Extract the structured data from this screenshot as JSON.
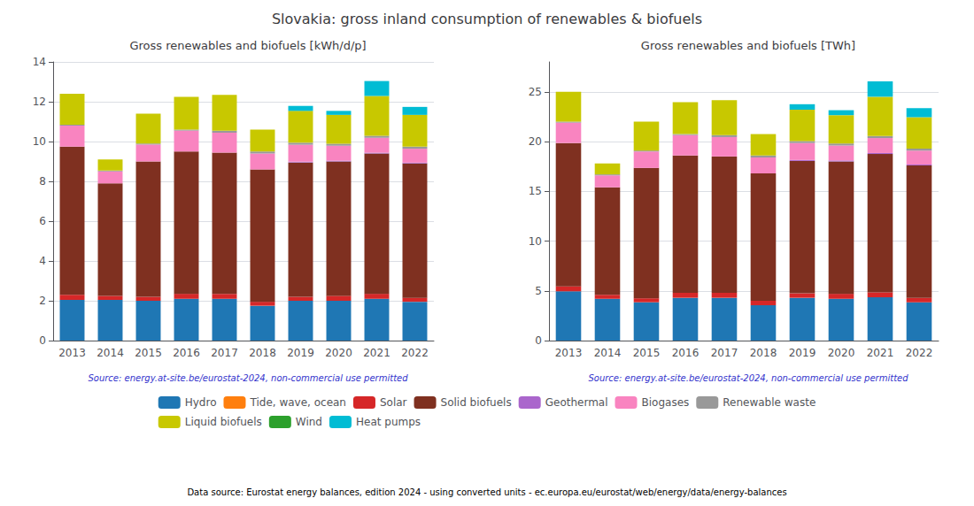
{
  "title": "Slovakia: gross inland consumption of renewables & biofuels",
  "annotations": [
    "Data source: Eurostat energy balances, edition 2024 - using converted units - ec.europa.eu/eurostat/web/energy/data/energy-balances"
  ],
  "chart_data": [
    {
      "type": "bar",
      "title": "Gross renewables and biofuels [kWh/d/p]",
      "annotations": [
        "Source: energy.at-site.be/eurostat-2024, non-commercial use permitted"
      ],
      "stacked": true,
      "grid": true,
      "legend": "bottom",
      "categories": [
        "2013",
        "2014",
        "2015",
        "2016",
        "2017",
        "2018",
        "2019",
        "2020",
        "2021",
        "2022"
      ],
      "series": [
        {
          "name": "Hydro",
          "color": "#1f77b4",
          "values": [
            2.05,
            2.05,
            2.0,
            2.1,
            2.1,
            1.75,
            2.0,
            2.0,
            2.1,
            1.95
          ]
        },
        {
          "name": "Tide, wave, ocean",
          "color": "#ff7f0e",
          "values": [
            0.0,
            0.0,
            0.0,
            0.0,
            0.0,
            0.0,
            0.0,
            0.0,
            0.0,
            0.0
          ]
        },
        {
          "name": "Solar",
          "color": "#d62728",
          "values": [
            0.25,
            0.2,
            0.2,
            0.25,
            0.25,
            0.2,
            0.2,
            0.25,
            0.25,
            0.2
          ]
        },
        {
          "name": "Solid biofuels",
          "color": "#7f3020",
          "values": [
            7.45,
            5.65,
            6.8,
            7.15,
            7.1,
            6.65,
            6.75,
            6.75,
            7.05,
            6.75
          ]
        },
        {
          "name": "Geothermal",
          "color": "#aa66cc",
          "values": [
            0.0,
            0.0,
            0.0,
            0.0,
            0.0,
            0.0,
            0.04,
            0.04,
            0.04,
            0.04
          ]
        },
        {
          "name": "Biogases",
          "color": "#f984c0",
          "values": [
            1.05,
            0.6,
            0.85,
            1.05,
            1.0,
            0.8,
            0.85,
            0.75,
            0.75,
            0.7
          ]
        },
        {
          "name": "Renewable waste",
          "color": "#999999",
          "values": [
            0.05,
            0.05,
            0.05,
            0.05,
            0.1,
            0.1,
            0.1,
            0.1,
            0.1,
            0.1
          ]
        },
        {
          "name": "Liquid biofuels",
          "color": "#c8c800",
          "values": [
            1.55,
            0.55,
            1.5,
            1.65,
            1.8,
            1.1,
            1.6,
            1.45,
            2.0,
            1.6
          ]
        },
        {
          "name": "Wind",
          "color": "#2ca02c",
          "values": [
            0.0,
            0.0,
            0.0,
            0.0,
            0.0,
            0.0,
            0.0,
            0.0,
            0.0,
            0.0
          ]
        },
        {
          "name": "Heat pumps",
          "color": "#00bcd4",
          "values": [
            0.0,
            0.0,
            0.0,
            0.0,
            0.0,
            0.0,
            0.25,
            0.2,
            0.75,
            0.4
          ]
        }
      ],
      "ylim": [
        0,
        14
      ],
      "yticks": [
        0,
        2,
        4,
        6,
        8,
        10,
        12,
        14
      ]
    },
    {
      "type": "bar",
      "title": "Gross renewables and biofuels [TWh]",
      "annotations": [
        "Source: energy.at-site.be/eurostat-2024, non-commercial use permitted"
      ],
      "stacked": true,
      "grid": true,
      "legend": "bottom",
      "categories": [
        "2013",
        "2014",
        "2015",
        "2016",
        "2017",
        "2018",
        "2019",
        "2020",
        "2021",
        "2022"
      ],
      "series": [
        {
          "name": "Hydro",
          "color": "#1f77b4",
          "values": [
            4.95,
            4.2,
            3.85,
            4.3,
            4.3,
            3.55,
            4.3,
            4.2,
            4.35,
            3.85
          ]
        },
        {
          "name": "Tide, wave, ocean",
          "color": "#ff7f0e",
          "values": [
            0.0,
            0.0,
            0.0,
            0.0,
            0.0,
            0.0,
            0.0,
            0.0,
            0.0,
            0.0
          ]
        },
        {
          "name": "Solar",
          "color": "#d62728",
          "values": [
            0.5,
            0.4,
            0.4,
            0.5,
            0.5,
            0.45,
            0.45,
            0.5,
            0.5,
            0.45
          ]
        },
        {
          "name": "Solid biofuels",
          "color": "#7f3020",
          "values": [
            14.4,
            10.8,
            13.1,
            13.8,
            13.7,
            12.8,
            13.3,
            13.3,
            13.9,
            13.3
          ]
        },
        {
          "name": "Geothermal",
          "color": "#aa66cc",
          "values": [
            0.0,
            0.0,
            0.0,
            0.0,
            0.0,
            0.0,
            0.1,
            0.1,
            0.1,
            0.1
          ]
        },
        {
          "name": "Biogases",
          "color": "#f984c0",
          "values": [
            2.05,
            1.2,
            1.65,
            2.05,
            1.95,
            1.6,
            1.7,
            1.5,
            1.5,
            1.4
          ]
        },
        {
          "name": "Renewable waste",
          "color": "#999999",
          "values": [
            0.1,
            0.1,
            0.1,
            0.1,
            0.2,
            0.2,
            0.2,
            0.2,
            0.2,
            0.2
          ]
        },
        {
          "name": "Liquid biofuels",
          "color": "#c8c800",
          "values": [
            3.0,
            1.1,
            2.9,
            3.2,
            3.5,
            2.15,
            3.15,
            2.85,
            3.95,
            3.15
          ]
        },
        {
          "name": "Wind",
          "color": "#2ca02c",
          "values": [
            0.0,
            0.0,
            0.0,
            0.0,
            0.0,
            0.0,
            0.0,
            0.0,
            0.0,
            0.0
          ]
        },
        {
          "name": "Heat pumps",
          "color": "#00bcd4",
          "values": [
            0.0,
            0.0,
            0.0,
            0.0,
            0.0,
            0.0,
            0.55,
            0.5,
            1.55,
            0.9
          ]
        }
      ],
      "ylim": [
        0,
        28
      ],
      "yticks": [
        0,
        5,
        10,
        15,
        20,
        25
      ]
    }
  ]
}
